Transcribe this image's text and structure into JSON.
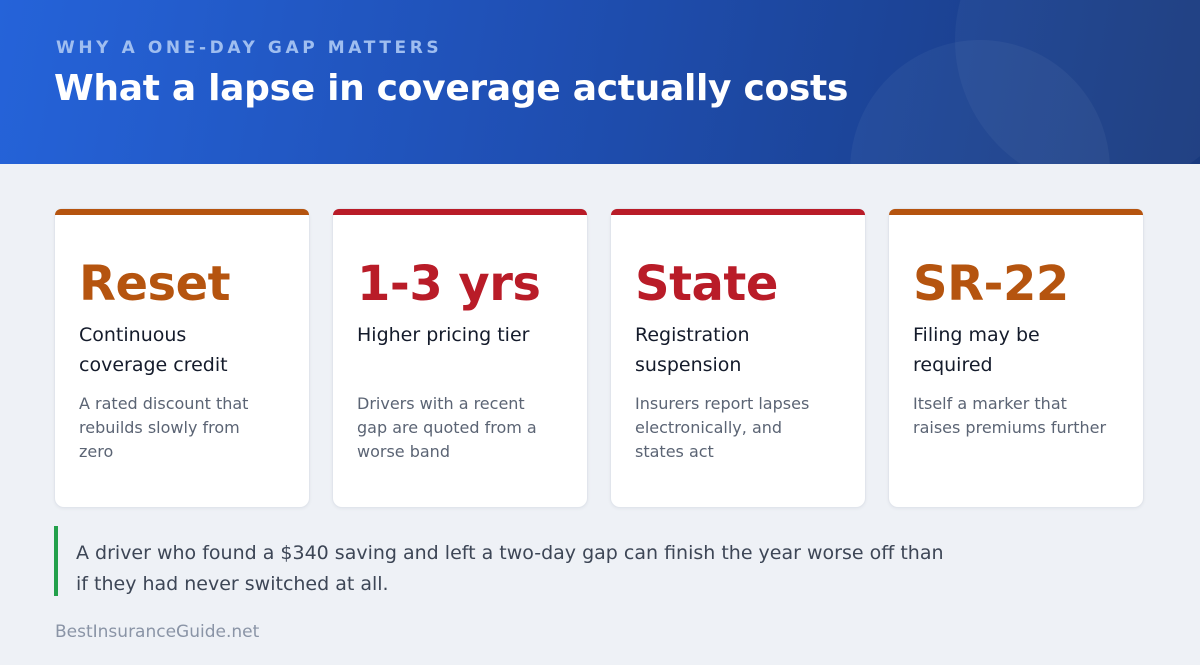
{
  "header": {
    "eyebrow": "WHY A ONE-DAY GAP MATTERS",
    "title": "What a lapse in coverage actually costs"
  },
  "colors": {
    "header_blue": "#2563d9",
    "orange": "#b5540f",
    "red": "#b91c28",
    "note_accent": "#22a04b"
  },
  "cards": [
    {
      "big": "Reset",
      "sub": "Continuous coverage credit",
      "desc": "A rated discount that rebuilds slowly from zero",
      "accent": "#b5540f"
    },
    {
      "big": "1-3 yrs",
      "sub": "Higher pricing tier",
      "desc": "Drivers with a recent gap are quoted from a worse band",
      "accent": "#b91c28"
    },
    {
      "big": "State",
      "sub": "Registration suspension",
      "desc": "Insurers report lapses electronically, and states act",
      "accent": "#b91c28"
    },
    {
      "big": "SR-22",
      "sub": "Filing may be required",
      "desc": "Itself a marker that raises premiums further",
      "accent": "#b5540f"
    }
  ],
  "note": {
    "text": "A driver who found a $340 saving and left a two-day gap can finish the year worse off than if they had never switched at all."
  },
  "footer": {
    "brand": "BestInsuranceGuide.net"
  }
}
